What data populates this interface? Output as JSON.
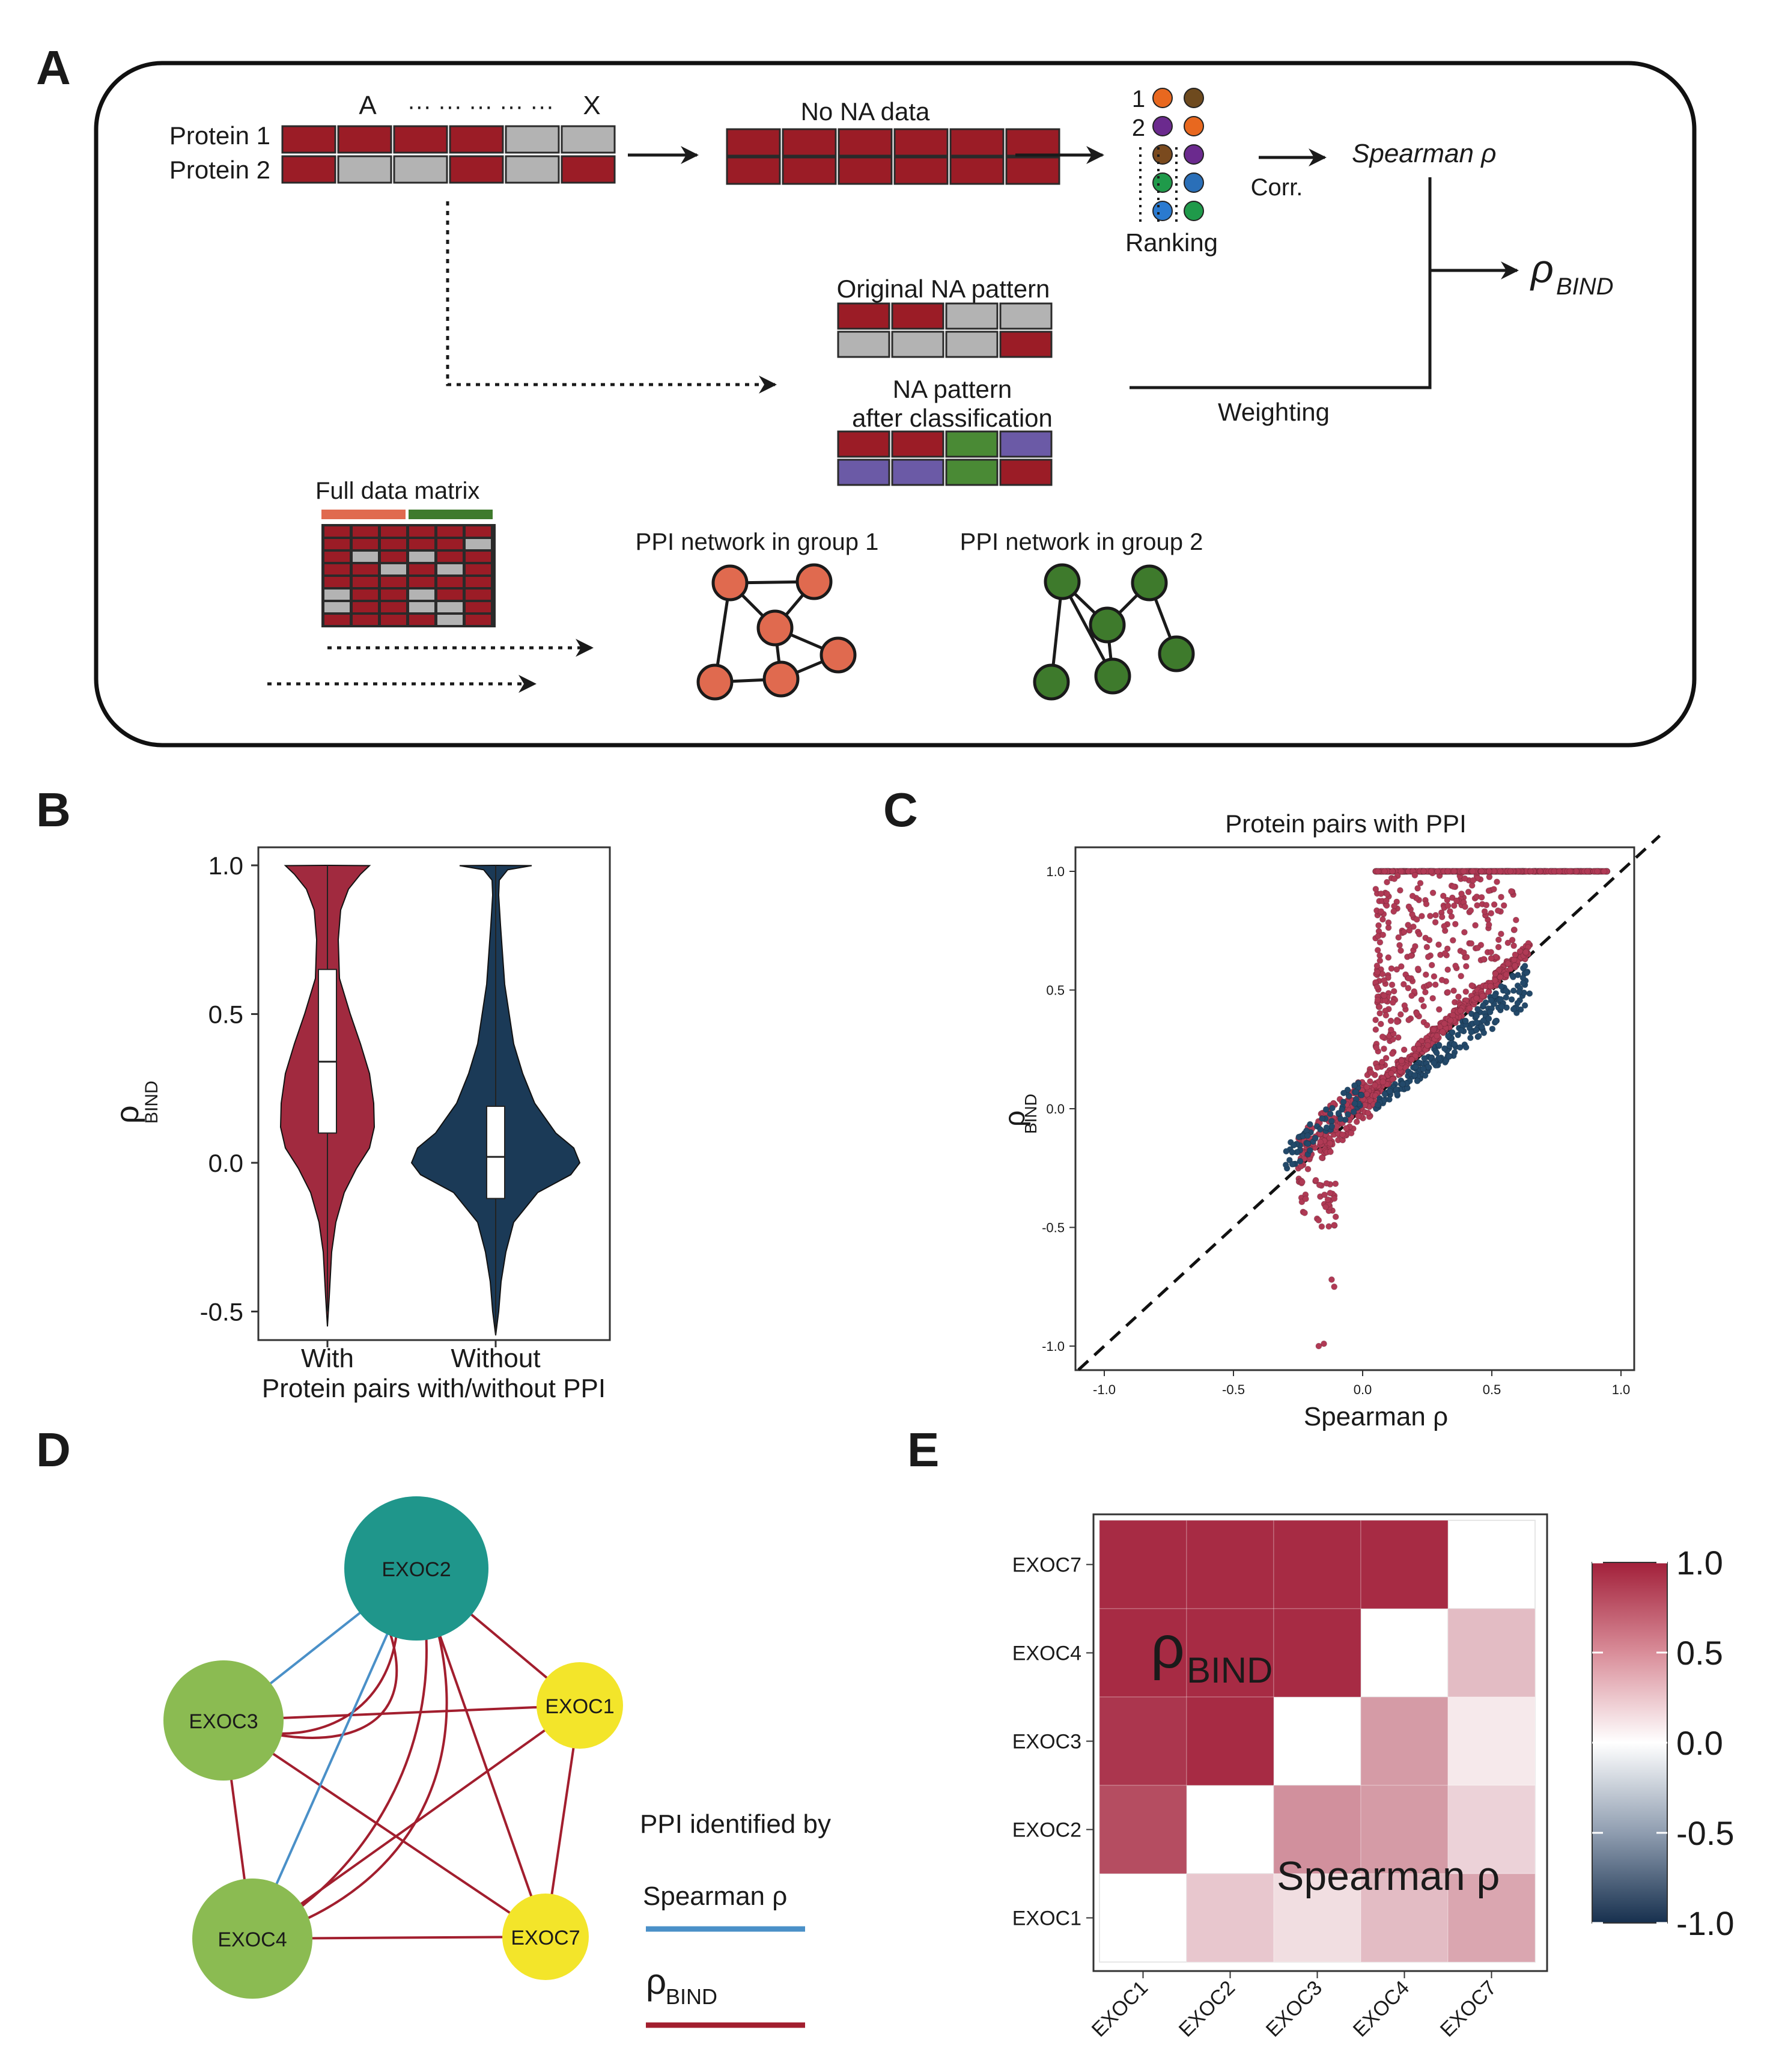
{
  "panel_labels": [
    "A",
    "B",
    "C",
    "D",
    "E"
  ],
  "panel_a": {
    "protein1": "Protein 1",
    "protein2": "Protein 2",
    "col_a": "A",
    "col_x": "X",
    "dots": "··· ··· ··· ··· ···",
    "no_na": "No NA data",
    "rank1": "1",
    "rank2": "2",
    "ranking": "Ranking",
    "corr": "Corr.",
    "spearman": "Spearman ρ",
    "rho_symbol": "ρ",
    "rho_sub": "BIND",
    "original_na": "Original NA pattern",
    "na_after_1": "NA pattern",
    "na_after_2": "after classification",
    "weighting": "Weighting",
    "full_matrix": "Full data matrix",
    "ppi_group1": "PPI network in group 1",
    "ppi_group2": "PPI network in group 2",
    "colors": {
      "present": "#9b1c26",
      "missing": "#b3b3b3",
      "group1": "#e06a4f",
      "group2": "#3e7a2c",
      "purple": "#6b5aa6",
      "green": "#4a8a35"
    }
  },
  "panel_b": {
    "ylabel_symbol": "ρ",
    "ylabel_sub": "BIND",
    "xlabel": "Protein pairs with/without PPI",
    "ticks": [
      "1.0",
      "0.5",
      "0.0",
      "-0.5"
    ],
    "colors": {
      "with": "#a12a3f",
      "without": "#1b3a57"
    },
    "chart_data": {
      "type": "violin",
      "categories": [
        "With",
        "Without"
      ],
      "ylim": [
        -0.5,
        1.0
      ],
      "box": [
        {
          "name": "With",
          "q1": 0.1,
          "median": 0.34,
          "q3": 0.65,
          "min": -0.5,
          "max": 1.0
        },
        {
          "name": "Without",
          "q1": -0.12,
          "median": 0.02,
          "q3": 0.19,
          "min": -0.58,
          "max": 1.0
        }
      ]
    }
  },
  "panel_c": {
    "title": "Protein pairs with PPI",
    "xlabel": "Spearman ρ",
    "ylabel_symbol": "ρ",
    "ylabel_sub": "BIND",
    "xticks": [
      "-1.0",
      "-0.5",
      "0.0",
      "0.5",
      "1.0"
    ],
    "yticks": [
      "1.0",
      "0.5",
      "0.0",
      "-0.5",
      "-1.0"
    ],
    "colors": {
      "above": "#b03a55",
      "below": "#23496a"
    },
    "chart_data": {
      "type": "scatter",
      "xlim": [
        -1.0,
        1.0
      ],
      "ylim": [
        -1.0,
        1.0
      ],
      "reference_line": "y = x (dashed)",
      "outliers": [
        [
          -0.12,
          -0.72
        ],
        [
          -0.11,
          -0.75
        ],
        [
          -0.15,
          -0.99
        ],
        [
          -0.17,
          -1.0
        ]
      ]
    }
  },
  "panel_d": {
    "nodes": [
      {
        "id": "EXOC2",
        "color": "#1f968b"
      },
      {
        "id": "EXOC3",
        "color": "#8bbb52"
      },
      {
        "id": "EXOC1",
        "color": "#f3e52a"
      },
      {
        "id": "EXOC4",
        "color": "#8bbb52"
      },
      {
        "id": "EXOC7",
        "color": "#f3e52a"
      }
    ],
    "legend_title": "PPI identified by",
    "legend_spearman": "Spearman ρ",
    "legend_rho_symbol": "ρ",
    "legend_rho_sub": "BIND",
    "colors": {
      "spearman": "#4a90c8",
      "rho_bind": "#a21e2e"
    }
  },
  "panel_e": {
    "rows": [
      "EXOC7",
      "EXOC4",
      "EXOC3",
      "EXOC2",
      "EXOC1"
    ],
    "cols": [
      "EXOC1",
      "EXOC2",
      "EXOC3",
      "EXOC4",
      "EXOC7"
    ],
    "label_rho_symbol": "ρ",
    "label_rho_sub": "BIND",
    "label_spearman": "Spearman ρ",
    "colorbar_ticks": [
      "1.0",
      "0.5",
      "0.0",
      "-0.5",
      "-1.0"
    ],
    "chart_data": {
      "type": "heatmap",
      "rows": [
        "EXOC7",
        "EXOC4",
        "EXOC3",
        "EXOC2",
        "EXOC1"
      ],
      "cols": [
        "EXOC1",
        "EXOC2",
        "EXOC3",
        "EXOC4",
        "EXOC7"
      ],
      "values": [
        [
          0.95,
          0.95,
          0.95,
          0.95,
          null
        ],
        [
          0.95,
          0.95,
          0.95,
          null,
          0.3
        ],
        [
          0.9,
          0.95,
          null,
          0.45,
          0.1
        ],
        [
          0.8,
          null,
          0.5,
          0.45,
          0.2
        ],
        [
          null,
          0.25,
          0.15,
          0.3,
          0.4
        ]
      ],
      "vlim": [
        -1.0,
        1.0
      ]
    }
  }
}
